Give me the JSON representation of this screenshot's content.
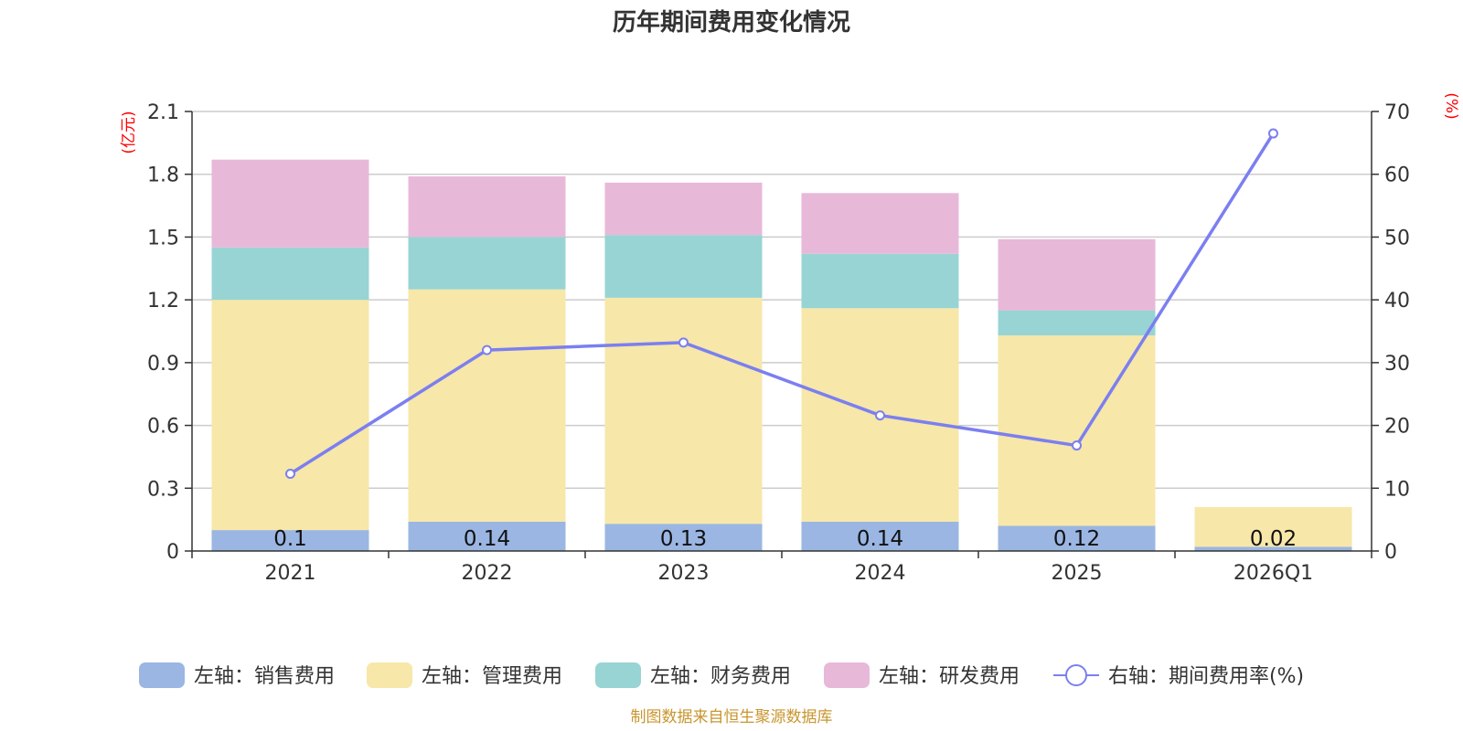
{
  "chart_data": {
    "type": "bar",
    "stacked": true,
    "title": "历年期间费用变化情况",
    "categories": [
      "2021",
      "2022",
      "2023",
      "2024",
      "2025",
      "2026Q1"
    ],
    "left_axis": {
      "unit": "(亿元)",
      "ylim": [
        0,
        2.1
      ],
      "ticks": [
        "0",
        "0.3",
        "0.6",
        "0.9",
        "1.2",
        "1.5",
        "1.8",
        "2.1"
      ]
    },
    "right_axis": {
      "unit": "(%)",
      "ylim": [
        0,
        70
      ],
      "ticks": [
        "0",
        "10",
        "20",
        "30",
        "40",
        "50",
        "60",
        "70"
      ]
    },
    "series": [
      {
        "name": "左轴：销售费用",
        "axis": "left",
        "color": "#9bb6e2",
        "values": [
          0.1,
          0.14,
          0.13,
          0.14,
          0.12,
          0.02
        ],
        "labels": [
          "0.1",
          "0.14",
          "0.13",
          "0.14",
          "0.12",
          "0.02"
        ]
      },
      {
        "name": "左轴：管理费用",
        "axis": "left",
        "color": "#f7e7a9",
        "values": [
          1.1,
          1.11,
          1.08,
          1.02,
          0.91,
          0.19
        ]
      },
      {
        "name": "左轴：财务费用",
        "axis": "left",
        "color": "#98d4d4",
        "values": [
          0.25,
          0.25,
          0.3,
          0.26,
          0.12,
          0.0
        ]
      },
      {
        "name": "左轴：研发费用",
        "axis": "left",
        "color": "#e8b8d9",
        "values": [
          0.42,
          0.29,
          0.25,
          0.29,
          0.34,
          0.0
        ]
      }
    ],
    "line_series": {
      "name": "右轴：期间费用率(%)",
      "axis": "right",
      "color": "#7b7ff0",
      "values": [
        12.3,
        32.0,
        33.2,
        21.6,
        16.8,
        66.5
      ]
    },
    "source": "制图数据来自恒生聚源数据库"
  }
}
